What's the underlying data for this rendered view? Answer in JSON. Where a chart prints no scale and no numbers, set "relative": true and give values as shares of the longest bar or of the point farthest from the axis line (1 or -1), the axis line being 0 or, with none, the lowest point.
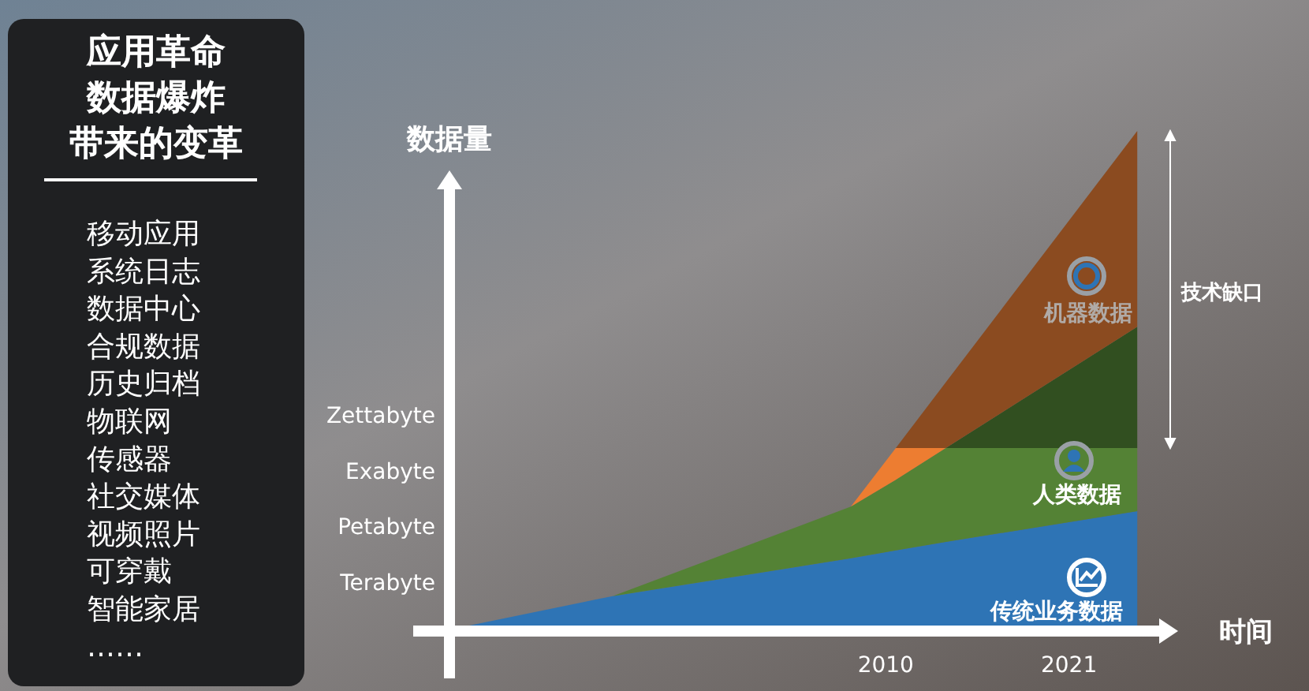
{
  "chart_data": [
    {
      "type": "other",
      "title": "应用革命数据爆炸带来的变革",
      "annotations": [
        "移动应用",
        "系统日志",
        "数据中心",
        "合规数据",
        "历史归档",
        "物联网",
        "传感器",
        "社交媒体",
        "视频照片",
        "可穿戴",
        "智能家居",
        "……"
      ]
    },
    {
      "type": "area",
      "stacked": true,
      "relative": true,
      "ylabel": "数据量",
      "xlabel": "时间",
      "x": [
        1984.3,
        1993.6,
        2007.9,
        2010.6,
        2013.6,
        2025.1
      ],
      "xlim": [
        1983.8,
        2026.7
      ],
      "xticks": [
        2010,
        2021
      ],
      "series": [
        {
          "name": "传统业务数据",
          "color": "#2e74b5",
          "values": [
            0,
            0.064,
            0.14,
            0.156,
            0.173,
            0.235
          ]
        },
        {
          "name": "人类数据",
          "color": "#548235",
          "values": [
            null,
            0,
            0.104,
            0.142,
            0.189,
            0.127
          ]
        },
        {
          "color": "#ed7d31",
          "values": [
            null,
            null,
            0,
            0.064,
            0,
            null
          ]
        },
        {
          "color": "#314f20",
          "values": [
            null,
            null,
            null,
            null,
            0,
            0.244
          ]
        },
        {
          "name": "机器数据",
          "color": "#8b4b20",
          "values": [
            null,
            null,
            null,
            0,
            0.132,
            0.394
          ]
        }
      ],
      "legend": "right",
      "annotations": [
        "Terabyte",
        "Petabyte",
        "Exabyte",
        "Zettabyte",
        "技术缺口"
      ]
    }
  ]
}
